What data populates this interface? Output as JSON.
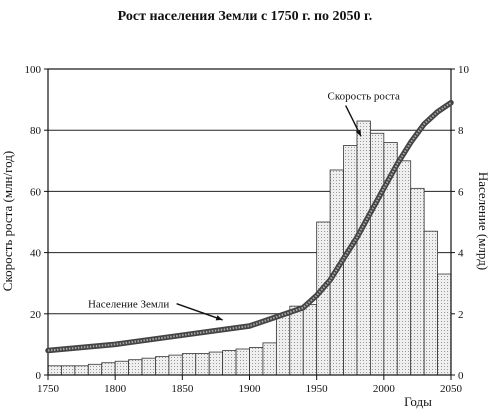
{
  "chart_data": {
    "type": "bar",
    "title": "Рост населения Земли с 1750 г. по 2050 г.",
    "xlabel": "Годы",
    "ylabel_left": "Скорость роста (млн/год)",
    "ylabel_right": "Население (млрд)",
    "xlim": [
      1750,
      2050
    ],
    "ylim_left": [
      0,
      100
    ],
    "ylim_right": [
      0,
      10
    ],
    "x_ticks": [
      1750,
      1800,
      1850,
      1900,
      1950,
      2000,
      2050
    ],
    "y_ticks_left": [
      0,
      20,
      40,
      60,
      80,
      100
    ],
    "y_ticks_right": [
      0,
      2,
      4,
      6,
      8,
      10
    ],
    "grid": true,
    "bar_width_years": 10,
    "series": [
      {
        "name": "Скорость роста",
        "axis": "left",
        "type": "bar",
        "x": [
          1750,
          1760,
          1770,
          1780,
          1790,
          1800,
          1810,
          1820,
          1830,
          1840,
          1850,
          1860,
          1870,
          1880,
          1890,
          1900,
          1910,
          1920,
          1930,
          1940,
          1950,
          1960,
          1970,
          1980,
          1990,
          2000,
          2010,
          2020,
          2030,
          2040
        ],
        "values": [
          3,
          3,
          3,
          3.5,
          4,
          4.5,
          5,
          5.5,
          6,
          6.5,
          7,
          7,
          7.5,
          8,
          8.5,
          9,
          10.5,
          20,
          22.5,
          23,
          50,
          67,
          75,
          83,
          79,
          76,
          70,
          61,
          47,
          33
        ]
      },
      {
        "name": "Население Земли",
        "axis": "right",
        "type": "line",
        "x": [
          1750,
          1800,
          1850,
          1900,
          1920,
          1940,
          1950,
          1960,
          1970,
          1980,
          1990,
          2000,
          2010,
          2020,
          2030,
          2040,
          2050
        ],
        "values": [
          0.8,
          1.0,
          1.3,
          1.6,
          1.9,
          2.2,
          2.6,
          3.1,
          3.8,
          4.5,
          5.3,
          6.1,
          6.9,
          7.6,
          8.2,
          8.6,
          8.9
        ]
      }
    ],
    "annotations": [
      {
        "text": "Скорость роста",
        "x": 1985,
        "y": 90,
        "axis": "left",
        "arrow_to": [
          1983,
          78
        ]
      },
      {
        "text": "Население Земли",
        "x": 1810,
        "y": 22,
        "axis": "left",
        "arrow_to": [
          1880,
          18
        ]
      }
    ]
  }
}
